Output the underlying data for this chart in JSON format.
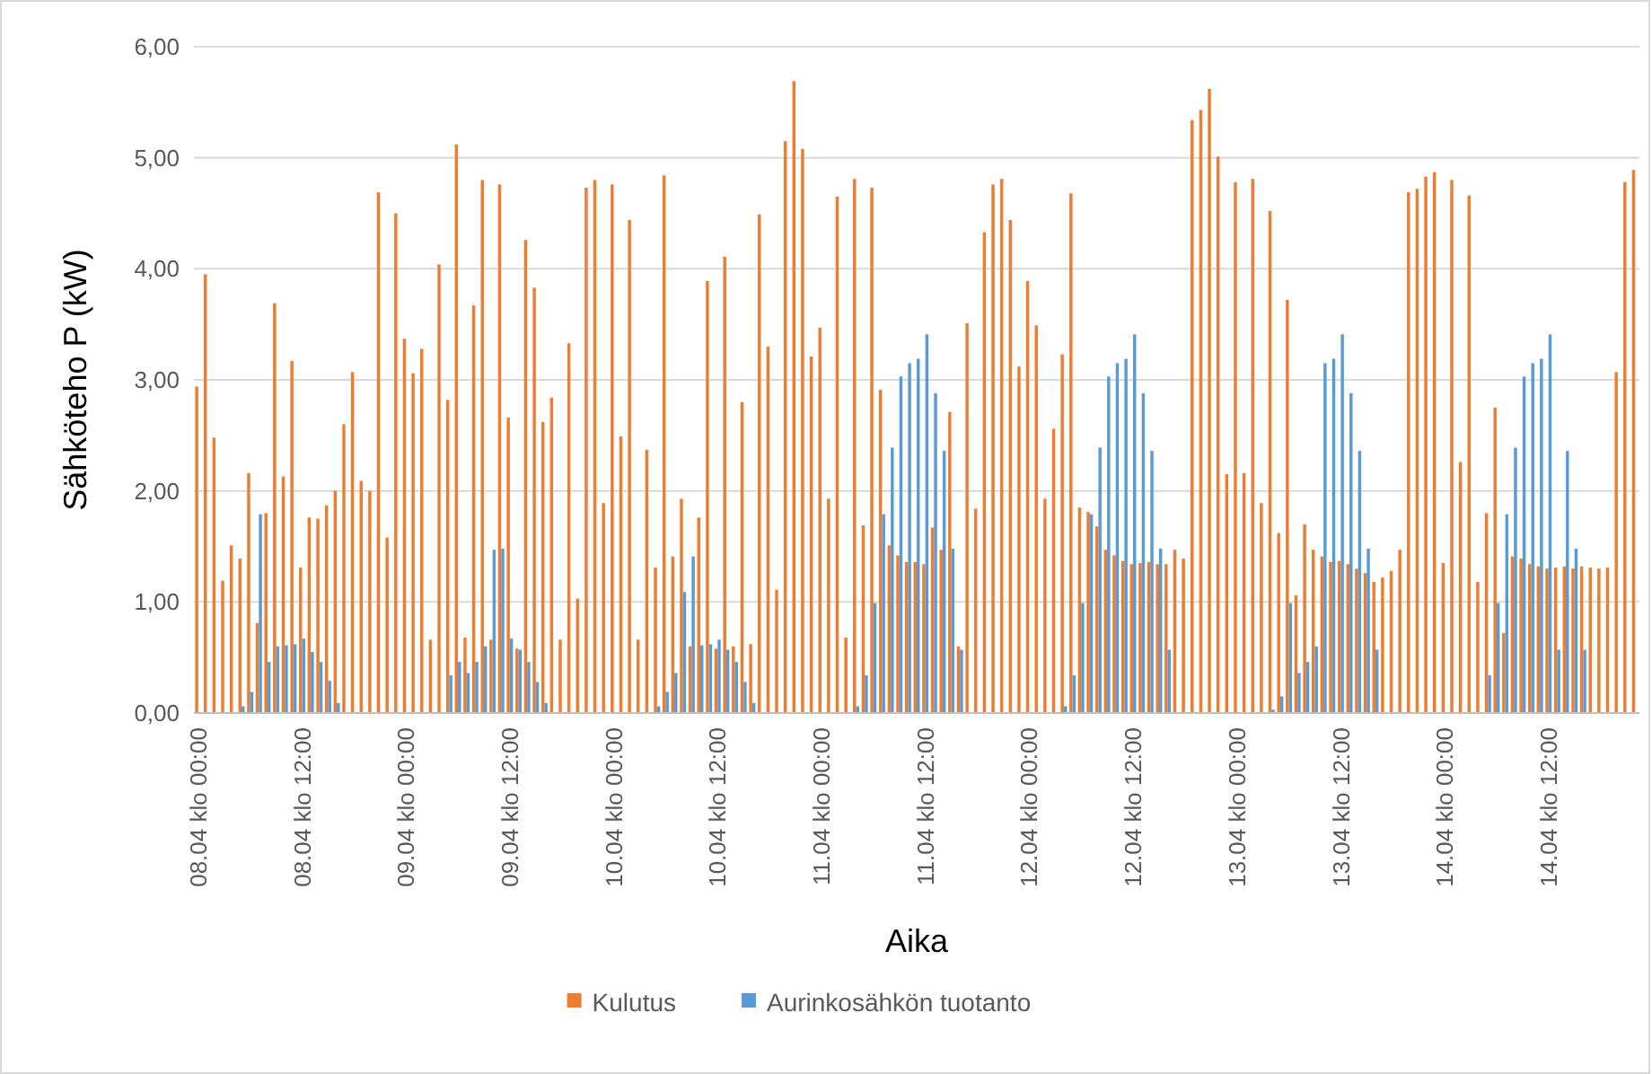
{
  "chart_data": {
    "type": "bar",
    "xlabel": "Aika",
    "ylabel": "Sähköteho P (kW)",
    "categories": [
      "08.04 klo 00:00",
      null,
      null,
      null,
      null,
      null,
      null,
      null,
      null,
      null,
      null,
      null,
      "08.04 klo 12:00",
      null,
      null,
      null,
      null,
      null,
      null,
      null,
      null,
      null,
      null,
      null,
      "09.04 klo 00:00",
      null,
      null,
      null,
      null,
      null,
      null,
      null,
      null,
      null,
      null,
      null,
      "09.04 klo 12:00",
      null,
      null,
      null,
      null,
      null,
      null,
      null,
      null,
      null,
      null,
      null,
      "10.04 klo 00:00",
      null,
      null,
      null,
      null,
      null,
      null,
      null,
      null,
      null,
      null,
      null,
      "10.04 klo 12:00",
      null,
      null,
      null,
      null,
      null,
      null,
      null,
      null,
      null,
      null,
      null,
      "11.04 klo 00:00",
      null,
      null,
      null,
      null,
      null,
      null,
      null,
      null,
      null,
      null,
      null,
      "11.04 klo 12:00",
      null,
      null,
      null,
      null,
      null,
      null,
      null,
      null,
      null,
      null,
      null,
      "12.04 klo 00:00",
      null,
      null,
      null,
      null,
      null,
      null,
      null,
      null,
      null,
      null,
      null,
      "12.04 klo 12:00",
      null,
      null,
      null,
      null,
      null,
      null,
      null,
      null,
      null,
      null,
      null,
      "13.04 klo 00:00",
      null,
      null,
      null,
      null,
      null,
      null,
      null,
      null,
      null,
      null,
      null,
      "13.04 klo 12:00",
      null,
      null,
      null,
      null,
      null,
      null,
      null,
      null,
      null,
      null,
      null,
      "14.04 klo 00:00",
      null,
      null,
      null,
      null,
      null,
      null,
      null,
      null,
      null,
      null,
      null,
      "14.04 klo 12:00",
      null,
      null,
      null,
      null,
      null,
      null,
      null,
      null,
      null,
      null
    ],
    "series": [
      {
        "name": "Kulutus",
        "color": "#ed7d31",
        "values": [
          2.94,
          3.95,
          2.48,
          1.19,
          1.51,
          1.39,
          2.16,
          0.81,
          1.8,
          3.69,
          2.13,
          3.17,
          1.31,
          1.76,
          1.75,
          1.87,
          2.0,
          2.6,
          3.07,
          2.09,
          2.0,
          4.69,
          1.58,
          4.5,
          3.37,
          3.06,
          3.28,
          0.66,
          4.04,
          2.82,
          5.12,
          0.68,
          3.67,
          4.8,
          0.66,
          4.76,
          2.66,
          0.58,
          4.26,
          3.83,
          2.62,
          2.84,
          0.66,
          3.33,
          1.03,
          4.73,
          4.8,
          1.89,
          4.76,
          2.49,
          4.44,
          0.66,
          2.37,
          1.31,
          4.84,
          1.41,
          1.93,
          0.6,
          1.76,
          3.89,
          0.58,
          4.11,
          0.6,
          2.8,
          0.62,
          4.49,
          3.3,
          1.11,
          5.15,
          5.69,
          5.08,
          3.21,
          3.47,
          1.93,
          4.65,
          0.68,
          4.81,
          1.69,
          4.73,
          2.91,
          1.51,
          1.42,
          1.36,
          1.36,
          1.34,
          1.67,
          1.47,
          2.71,
          0.6,
          3.51,
          1.84,
          4.33,
          4.76,
          4.81,
          4.44,
          3.12,
          3.89,
          3.49,
          1.93,
          2.56,
          3.23,
          4.68,
          1.85,
          1.81,
          1.68,
          1.47,
          1.42,
          1.37,
          1.34,
          1.35,
          1.36,
          1.34,
          1.34,
          1.47,
          1.39,
          5.34,
          5.43,
          5.62,
          5.01,
          2.15,
          4.78,
          2.16,
          4.81,
          1.89,
          4.52,
          1.62,
          3.72,
          1.06,
          1.7,
          1.47,
          1.41,
          1.36,
          1.37,
          1.34,
          1.3,
          1.26,
          1.18,
          1.22,
          1.28,
          1.47,
          4.69,
          4.72,
          4.83,
          4.87,
          1.35,
          4.8,
          2.26,
          4.66,
          1.18,
          1.8,
          2.75,
          0.72,
          1.41,
          1.39,
          1.34,
          1.32,
          1.3,
          1.31,
          1.32,
          1.3,
          1.32,
          1.31,
          1.3,
          1.31,
          3.07,
          4.78,
          4.89
        ]
      },
      {
        "name": "Aurinkosähkön tuotanto",
        "color": "#5b9bd5",
        "values": [
          0,
          0,
          0,
          0,
          0,
          0.06,
          0.19,
          1.79,
          0.46,
          0.6,
          0.61,
          0.62,
          0.67,
          0.55,
          0.46,
          0.29,
          0.09,
          0,
          0,
          0,
          0,
          0,
          0,
          0,
          0,
          0,
          0,
          0,
          0,
          0.34,
          0.46,
          0.36,
          0.46,
          0.6,
          1.47,
          1.48,
          0.67,
          0.57,
          0.46,
          0.28,
          0.09,
          0,
          0,
          0,
          0,
          0,
          0,
          0,
          0,
          0,
          0,
          0,
          0,
          0.06,
          0.19,
          0.36,
          1.09,
          1.41,
          0.61,
          0.62,
          0.66,
          0.57,
          0.46,
          0.28,
          0.09,
          0,
          0,
          0,
          0,
          0,
          0,
          0,
          0,
          0,
          0,
          0,
          0.06,
          0.34,
          0.99,
          1.79,
          2.39,
          3.03,
          3.15,
          3.19,
          3.41,
          2.88,
          2.36,
          1.48,
          0.57,
          0,
          0,
          0,
          0,
          0,
          0,
          0,
          0,
          0,
          0,
          0,
          0.06,
          0.34,
          0.99,
          1.79,
          2.39,
          3.03,
          3.15,
          3.19,
          3.41,
          2.88,
          2.36,
          1.48,
          0.57,
          0,
          0,
          0,
          0,
          0,
          0,
          0,
          0,
          0,
          0,
          0,
          0.03,
          0.15,
          0.99,
          0.36,
          0.46,
          0.6,
          3.15,
          3.19,
          3.41,
          2.88,
          2.36,
          1.48,
          0.57,
          0,
          0,
          0,
          0,
          0,
          0,
          0,
          0,
          0,
          0,
          0,
          0,
          0.34,
          0.99,
          1.79,
          2.39,
          3.03,
          3.15,
          3.19,
          3.41,
          0.57,
          2.36,
          1.48,
          0.57,
          0,
          0,
          0,
          0,
          0,
          0
        ]
      }
    ],
    "ylim": [
      0,
      6
    ],
    "yticks": [
      {
        "value": 0,
        "label": "0,00"
      },
      {
        "value": 1,
        "label": "1,00"
      },
      {
        "value": 2,
        "label": "2,00"
      },
      {
        "value": 3,
        "label": "3,00"
      },
      {
        "value": 4,
        "label": "4,00"
      },
      {
        "value": 5,
        "label": "5,00"
      },
      {
        "value": 6,
        "label": "6,00"
      }
    ],
    "grid": "y",
    "legend": "bottom"
  }
}
